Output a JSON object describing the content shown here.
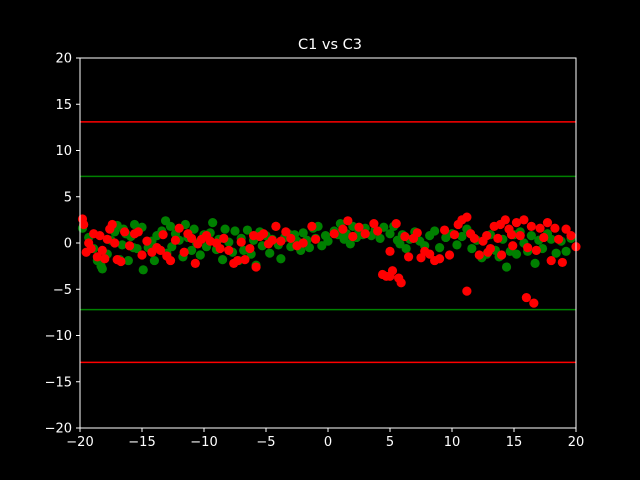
{
  "chart_data": {
    "type": "scatter",
    "title": "C1 vs C3",
    "xlabel": "",
    "ylabel": "",
    "xlim": [
      -20,
      20
    ],
    "ylim": [
      -20,
      20
    ],
    "xticks": [
      -20,
      -15,
      -10,
      -5,
      0,
      5,
      10,
      15,
      20
    ],
    "yticks": [
      -20,
      -15,
      -10,
      -5,
      0,
      5,
      10,
      15,
      20
    ],
    "xtick_labels": [
      "−20",
      "−15",
      "−10",
      "−5",
      "0",
      "5",
      "10",
      "15",
      "20"
    ],
    "ytick_labels": [
      "−20",
      "−15",
      "−10",
      "−5",
      "0",
      "5",
      "10",
      "15",
      "20"
    ],
    "grid": false,
    "background": "#000000",
    "hlines": [
      {
        "y": 13.1,
        "color": "#ff0000"
      },
      {
        "y": -12.9,
        "color": "#ff0000"
      },
      {
        "y": 7.2,
        "color": "#008000"
      },
      {
        "y": -7.2,
        "color": "#008000"
      }
    ],
    "series": [
      {
        "color": "#008000",
        "points": [
          [
            -19.8,
            1.6
          ],
          [
            -19.3,
            0.6
          ],
          [
            -18.9,
            -0.6
          ],
          [
            -18.6,
            -1.9
          ],
          [
            -18.3,
            -2.5
          ],
          [
            -18.2,
            -2.8
          ],
          [
            -17.8,
            -1.2
          ],
          [
            -17.5,
            0.3
          ],
          [
            -17.2,
            1.2
          ],
          [
            -17.0,
            1.9
          ],
          [
            -16.8,
            -1.8
          ],
          [
            -16.6,
            -0.2
          ],
          [
            -16.5,
            1.5
          ],
          [
            -16.3,
            1.0
          ],
          [
            -16.1,
            -1.9
          ],
          [
            -15.9,
            0.7
          ],
          [
            -15.7,
            -0.5
          ],
          [
            -15.6,
            2.0
          ],
          [
            -15.4,
            -0.6
          ],
          [
            -15.0,
            1.7
          ],
          [
            -14.9,
            -2.9
          ],
          [
            -14.5,
            -0.5
          ],
          [
            -14.2,
            0.2
          ],
          [
            -14.0,
            -1.9
          ],
          [
            -13.8,
            0.8
          ],
          [
            -13.4,
            1.3
          ],
          [
            -13.1,
            2.4
          ],
          [
            -13.0,
            -1.1
          ],
          [
            -12.7,
            1.8
          ],
          [
            -12.6,
            -0.4
          ],
          [
            -12.3,
            1.0
          ],
          [
            -12.0,
            0.3
          ],
          [
            -11.7,
            -1.5
          ],
          [
            -11.5,
            2.0
          ],
          [
            -11.3,
            0.6
          ],
          [
            -11.0,
            -0.8
          ],
          [
            -10.8,
            1.5
          ],
          [
            -10.6,
            0.0
          ],
          [
            -10.3,
            -1.3
          ],
          [
            -10.0,
            0.9
          ],
          [
            -9.8,
            -0.4
          ],
          [
            -9.5,
            1.1
          ],
          [
            -9.3,
            2.2
          ],
          [
            -9.0,
            -0.7
          ],
          [
            -8.8,
            0.4
          ],
          [
            -8.5,
            -1.8
          ],
          [
            -8.3,
            1.5
          ],
          [
            -8.0,
            0.1
          ],
          [
            -7.7,
            -1.0
          ],
          [
            -7.5,
            1.3
          ],
          [
            -7.2,
            -1.9
          ],
          [
            -7.0,
            0.5
          ],
          [
            -6.8,
            -0.8
          ],
          [
            -6.5,
            1.4
          ],
          [
            -6.2,
            -1.2
          ],
          [
            -6.0,
            0.3
          ],
          [
            -5.8,
            -2.4
          ],
          [
            -5.5,
            1.2
          ],
          [
            -5.3,
            -0.3
          ],
          [
            -5.0,
            0.8
          ],
          [
            -4.7,
            -1.1
          ],
          [
            -4.5,
            0.4
          ],
          [
            -4.2,
            1.8
          ],
          [
            -4.0,
            -0.2
          ],
          [
            -3.8,
            -1.7
          ],
          [
            -3.5,
            0.6
          ],
          [
            -3.2,
            1.0
          ],
          [
            -3.0,
            -0.4
          ],
          [
            -2.7,
            0.9
          ],
          [
            -2.5,
            0.2
          ],
          [
            -2.2,
            -0.8
          ],
          [
            -2.0,
            1.1
          ],
          [
            -1.7,
            0.3
          ],
          [
            -1.5,
            -0.5
          ],
          [
            -1.2,
            1.6
          ],
          [
            -1.0,
            0.5
          ],
          [
            -0.8,
            1.8
          ],
          [
            -0.5,
            -0.3
          ],
          [
            -0.2,
            0.8
          ],
          [
            0.0,
            0.2
          ],
          [
            0.5,
            1.3
          ],
          [
            0.8,
            0.9
          ],
          [
            1.0,
            2.1
          ],
          [
            1.3,
            0.4
          ],
          [
            1.5,
            1.0
          ],
          [
            1.8,
            -0.1
          ],
          [
            2.0,
            1.8
          ],
          [
            2.3,
            0.6
          ],
          [
            2.5,
            1.2
          ],
          [
            2.8,
            0.9
          ],
          [
            3.0,
            1.6
          ],
          [
            3.5,
            0.8
          ],
          [
            3.8,
            1.4
          ],
          [
            4.2,
            0.5
          ],
          [
            4.5,
            1.7
          ],
          [
            5.0,
            1.0
          ],
          [
            5.3,
            1.8
          ],
          [
            5.6,
            0.3
          ],
          [
            5.8,
            -0.1
          ],
          [
            6.0,
            0.9
          ],
          [
            6.3,
            -0.6
          ],
          [
            6.6,
            0.4
          ],
          [
            7.0,
            1.2
          ],
          [
            7.4,
            0.2
          ],
          [
            7.8,
            -0.3
          ],
          [
            8.2,
            0.8
          ],
          [
            8.6,
            1.3
          ],
          [
            9.0,
            -0.5
          ],
          [
            9.5,
            0.6
          ],
          [
            10.0,
            1.0
          ],
          [
            10.4,
            -0.2
          ],
          [
            10.8,
            0.7
          ],
          [
            11.2,
            1.5
          ],
          [
            11.6,
            -0.6
          ],
          [
            12.0,
            0.3
          ],
          [
            12.4,
            -1.6
          ],
          [
            12.8,
            -1.2
          ],
          [
            13.1,
            0.9
          ],
          [
            13.5,
            -0.8
          ],
          [
            13.8,
            -1.5
          ],
          [
            14.1,
            0.4
          ],
          [
            14.4,
            -2.6
          ],
          [
            14.7,
            -0.9
          ],
          [
            15.0,
            0.9
          ],
          [
            15.2,
            -1.2
          ],
          [
            15.5,
            1.2
          ],
          [
            15.8,
            0.0
          ],
          [
            16.1,
            -0.9
          ],
          [
            16.4,
            0.8
          ],
          [
            16.7,
            -2.2
          ],
          [
            17.0,
            0.3
          ],
          [
            17.3,
            -0.6
          ],
          [
            17.7,
            1.0
          ],
          [
            18.0,
            0.4
          ],
          [
            18.4,
            -1.1
          ],
          [
            18.8,
            0.2
          ],
          [
            19.2,
            -0.9
          ],
          [
            19.6,
            0.5
          ]
        ]
      },
      {
        "color": "#ff0000",
        "points": [
          [
            -19.8,
            2.6
          ],
          [
            -19.7,
            2.0
          ],
          [
            -19.5,
            -1.0
          ],
          [
            -19.3,
            0.0
          ],
          [
            -19.1,
            -0.6
          ],
          [
            -18.9,
            1.0
          ],
          [
            -18.6,
            -1.5
          ],
          [
            -18.4,
            0.8
          ],
          [
            -18.2,
            -0.8
          ],
          [
            -18.0,
            -1.7
          ],
          [
            -17.8,
            0.4
          ],
          [
            -17.6,
            1.5
          ],
          [
            -17.4,
            2.0
          ],
          [
            -17.2,
            0.0
          ],
          [
            -17.0,
            -1.8
          ],
          [
            -16.7,
            -2.0
          ],
          [
            -16.4,
            1.2
          ],
          [
            -16.0,
            -0.3
          ],
          [
            -15.6,
            1.0
          ],
          [
            -15.3,
            1.2
          ],
          [
            -15.0,
            -1.3
          ],
          [
            -14.6,
            0.2
          ],
          [
            -14.2,
            -1.0
          ],
          [
            -13.8,
            -0.5
          ],
          [
            -13.5,
            -0.8
          ],
          [
            -13.3,
            0.9
          ],
          [
            -13.0,
            -1.4
          ],
          [
            -12.7,
            -1.9
          ],
          [
            -12.3,
            0.3
          ],
          [
            -12.0,
            1.6
          ],
          [
            -11.6,
            -1.0
          ],
          [
            -11.3,
            1.0
          ],
          [
            -11.0,
            0.5
          ],
          [
            -10.7,
            -2.2
          ],
          [
            -10.5,
            -0.1
          ],
          [
            -10.2,
            0.4
          ],
          [
            -9.8,
            0.8
          ],
          [
            -9.5,
            0.2
          ],
          [
            -9.0,
            0.0
          ],
          [
            -8.7,
            -0.6
          ],
          [
            -8.4,
            0.5
          ],
          [
            -8.0,
            -0.8
          ],
          [
            -7.6,
            -2.2
          ],
          [
            -7.3,
            -1.9
          ],
          [
            -7.0,
            0.1
          ],
          [
            -6.7,
            -1.8
          ],
          [
            -6.3,
            -0.6
          ],
          [
            -6.0,
            0.8
          ],
          [
            -5.8,
            -2.6
          ],
          [
            -5.5,
            0.7
          ],
          [
            -5.2,
            1.0
          ],
          [
            -4.8,
            -0.1
          ],
          [
            -4.5,
            0.3
          ],
          [
            -4.2,
            1.8
          ],
          [
            -3.8,
            0.2
          ],
          [
            -3.4,
            1.2
          ],
          [
            -3.0,
            0.5
          ],
          [
            -2.5,
            -0.3
          ],
          [
            -2.0,
            0.0
          ],
          [
            -1.3,
            1.8
          ],
          [
            -1.0,
            0.4
          ],
          [
            0.5,
            1.0
          ],
          [
            1.2,
            1.5
          ],
          [
            1.6,
            2.4
          ],
          [
            2.0,
            0.7
          ],
          [
            2.5,
            1.7
          ],
          [
            3.0,
            1.0
          ],
          [
            3.7,
            2.1
          ],
          [
            4.0,
            1.3
          ],
          [
            4.4,
            -3.4
          ],
          [
            4.7,
            -3.6
          ],
          [
            5.0,
            -3.6
          ],
          [
            5.2,
            -3.0
          ],
          [
            5.0,
            -0.9
          ],
          [
            5.5,
            2.1
          ],
          [
            5.7,
            -3.8
          ],
          [
            5.9,
            -4.3
          ],
          [
            6.2,
            0.7
          ],
          [
            6.5,
            -1.5
          ],
          [
            6.9,
            0.5
          ],
          [
            7.2,
            1.1
          ],
          [
            7.5,
            -1.6
          ],
          [
            7.8,
            -0.9
          ],
          [
            8.2,
            -1.2
          ],
          [
            8.6,
            -1.9
          ],
          [
            9.0,
            -1.7
          ],
          [
            9.4,
            1.4
          ],
          [
            9.8,
            -1.3
          ],
          [
            10.2,
            0.9
          ],
          [
            10.5,
            2.0
          ],
          [
            10.8,
            2.5
          ],
          [
            11.2,
            2.8
          ],
          [
            11.5,
            1.0
          ],
          [
            11.8,
            0.5
          ],
          [
            11.2,
            -5.2
          ],
          [
            12.2,
            -1.3
          ],
          [
            12.5,
            0.2
          ],
          [
            12.8,
            0.8
          ],
          [
            13.1,
            -0.6
          ],
          [
            13.4,
            1.8
          ],
          [
            13.7,
            0.5
          ],
          [
            14.0,
            -1.3
          ],
          [
            14.3,
            2.5
          ],
          [
            14.6,
            1.5
          ],
          [
            14.9,
            -0.3
          ],
          [
            15.2,
            2.2
          ],
          [
            15.5,
            0.8
          ],
          [
            15.8,
            2.5
          ],
          [
            16.1,
            -0.5
          ],
          [
            16.4,
            1.8
          ],
          [
            16.0,
            -5.9
          ],
          [
            16.6,
            -6.5
          ],
          [
            16.8,
            -0.8
          ],
          [
            17.1,
            1.6
          ],
          [
            17.4,
            0.6
          ],
          [
            17.7,
            2.2
          ],
          [
            18.0,
            -1.9
          ],
          [
            18.3,
            1.6
          ],
          [
            18.6,
            0.4
          ],
          [
            18.9,
            -2.1
          ],
          [
            19.2,
            1.5
          ],
          [
            19.6,
            0.8
          ],
          [
            20.0,
            -0.4
          ],
          [
            14.8,
            0.9
          ],
          [
            13.9,
            2.0
          ],
          [
            12.9,
            -1.0
          ]
        ]
      }
    ]
  }
}
